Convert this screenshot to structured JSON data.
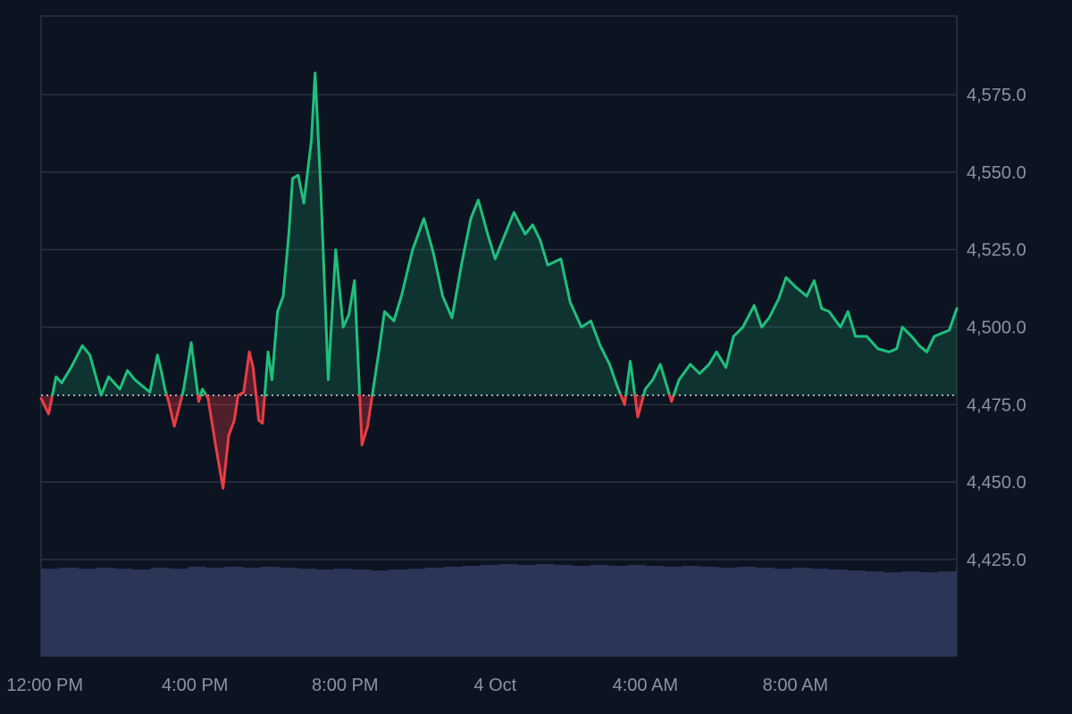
{
  "chart_data": {
    "type": "area",
    "title": "",
    "xlabel": "",
    "ylabel": "",
    "baseline": 4478,
    "ylim": [
      4400,
      4600
    ],
    "y_ticks": [
      4575,
      4550,
      4525,
      4500,
      4475,
      4450,
      4425
    ],
    "y_tick_labels": [
      "4,575.0",
      "4,550.0",
      "4,525.0",
      "4,500.0",
      "4,475.0",
      "4,450.0",
      "4,425.0"
    ],
    "x_tick_labels": [
      "12:00 PM",
      "4:00 PM",
      "8:00 PM",
      "4 Oct",
      "4:00 AM",
      "8:00 AM"
    ],
    "x_tick_hours": [
      0,
      4,
      8,
      12,
      16,
      20
    ],
    "x_range_hours": [
      -0.1,
      24.3
    ],
    "grid": true,
    "series": [
      {
        "kind": "price",
        "x_hours": [
          -0.1,
          0.1,
          0.3,
          0.45,
          0.7,
          1.0,
          1.2,
          1.5,
          1.7,
          2.0,
          2.2,
          2.4,
          2.6,
          2.8,
          3.0,
          3.1,
          3.2,
          3.3,
          3.45,
          3.7,
          3.9,
          4.1,
          4.2,
          4.35,
          4.55,
          4.75,
          4.9,
          5.05,
          5.15,
          5.3,
          5.45,
          5.55,
          5.7,
          5.8,
          5.95,
          6.05,
          6.2,
          6.35,
          6.5,
          6.6,
          6.75,
          6.9,
          7.1,
          7.2,
          7.35,
          7.55,
          7.75,
          7.95,
          8.1,
          8.25,
          8.45,
          8.6,
          8.9,
          9.05,
          9.3,
          9.5,
          9.8,
          10.1,
          10.35,
          10.6,
          10.85,
          11.1,
          11.35,
          11.55,
          11.8,
          12.0,
          12.2,
          12.5,
          12.8,
          13.0,
          13.2,
          13.4,
          13.75,
          14.0,
          14.3,
          14.55,
          14.8,
          15.05,
          15.25,
          15.45,
          15.6,
          15.8,
          16.0,
          16.2,
          16.4,
          16.7,
          16.9,
          17.2,
          17.45,
          17.7,
          17.9,
          18.15,
          18.35,
          18.6,
          18.9,
          19.1,
          19.3,
          19.55,
          19.75,
          20.0,
          20.3,
          20.5,
          20.7,
          20.9,
          21.2,
          21.4,
          21.6,
          21.9,
          22.2,
          22.5,
          22.7,
          22.85,
          23.1,
          23.3,
          23.5,
          23.7,
          23.9,
          24.1,
          24.3
        ],
        "values": [
          4477,
          4472,
          4484,
          4482,
          4487,
          4494,
          4491,
          4478,
          4484,
          4480,
          4486,
          4483,
          4481,
          4479,
          4491,
          4486,
          4480,
          4476,
          4468,
          4480,
          4495,
          4476,
          4480,
          4477,
          4462,
          4448,
          4465,
          4470,
          4478,
          4479,
          4492,
          4487,
          4470,
          4469,
          4492,
          4483,
          4505,
          4510,
          4530,
          4548,
          4549,
          4540,
          4560,
          4582,
          4545,
          4483,
          4525,
          4500,
          4504,
          4515,
          4462,
          4468,
          4492,
          4505,
          4502,
          4510,
          4525,
          4535,
          4524,
          4510,
          4503,
          4520,
          4535,
          4541,
          4530,
          4522,
          4528,
          4537,
          4530,
          4533,
          4528,
          4520,
          4522,
          4508,
          4500,
          4502,
          4494,
          4488,
          4481,
          4475,
          4489,
          4471,
          4480,
          4483,
          4488,
          4476,
          4483,
          4488,
          4485,
          4488,
          4492,
          4487,
          4497,
          4500,
          4507,
          4500,
          4503,
          4509,
          4516,
          4513,
          4510,
          4515,
          4506,
          4505,
          4500,
          4505,
          4497,
          4497,
          4493,
          4492,
          4493,
          4500,
          4497,
          4494,
          4492,
          4497,
          4498,
          4499,
          4506
        ]
      }
    ],
    "volume": {
      "bars_fraction_of_max": [
        0.95,
        0.96,
        0.95,
        0.96,
        0.95,
        0.94,
        0.96,
        0.95,
        0.97,
        0.96,
        0.97,
        0.96,
        0.97,
        0.96,
        0.95,
        0.94,
        0.95,
        0.94,
        0.93,
        0.94,
        0.95,
        0.96,
        0.97,
        0.98,
        0.99,
        1.0,
        0.99,
        1.0,
        0.99,
        0.98,
        0.99,
        0.98,
        0.99,
        0.98,
        0.97,
        0.98,
        0.97,
        0.96,
        0.97,
        0.96,
        0.95,
        0.96,
        0.95,
        0.94,
        0.93,
        0.92,
        0.91,
        0.92,
        0.91,
        0.92
      ],
      "color": "#2b3558"
    },
    "colors": {
      "up": "#1ec07c",
      "down": "#ec3c44",
      "up_fill": "rgba(30,192,124,0.18)",
      "down_fill": "rgba(236,60,68,0.30)",
      "baseline": "#d7dbe4",
      "grid": "#2b3241",
      "volume": "#2b3558"
    }
  }
}
